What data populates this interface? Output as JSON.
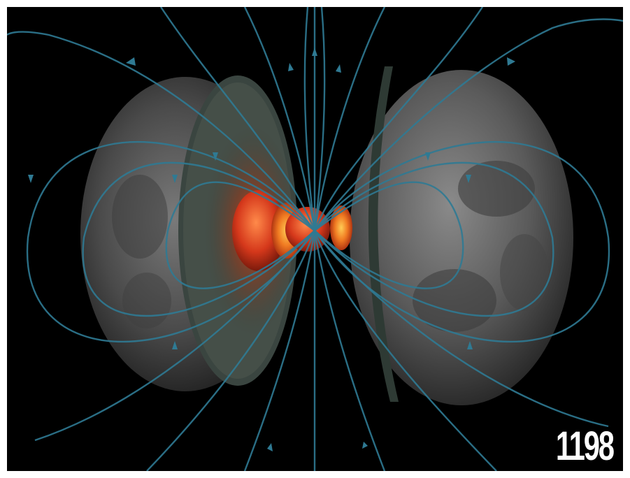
{
  "illustration": {
    "subject": "moon-interior-cutaway-with-magnetic-field-lines",
    "background_color": "#000000",
    "field_line_color": "#2f7a93",
    "core_color": "#e84a1c",
    "crust_color": "#3f4a42",
    "surface_color": "#6b6b6b"
  },
  "page_number": "1198"
}
